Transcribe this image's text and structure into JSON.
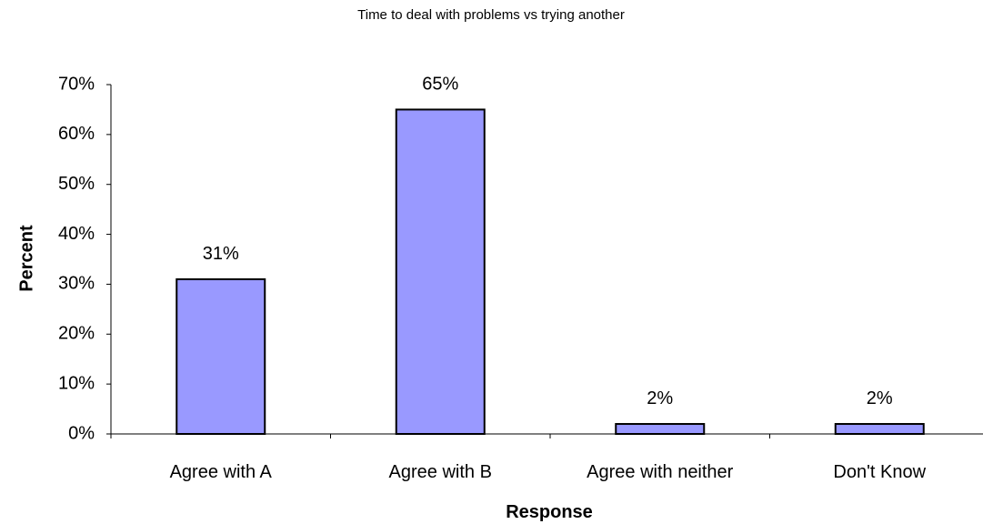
{
  "chart_data": {
    "type": "bar",
    "title": "Time to deal with problems vs trying another",
    "xlabel": "Response",
    "ylabel": "Percent",
    "categories": [
      "Agree with A",
      "Agree with B",
      "Agree with neither",
      "Don't Know"
    ],
    "values": [
      31,
      65,
      2,
      2
    ],
    "data_labels": [
      "31%",
      "65%",
      "2%",
      "2%"
    ],
    "ylim": [
      0,
      70
    ],
    "yticks": [
      0,
      10,
      20,
      30,
      40,
      50,
      60,
      70
    ],
    "ytick_labels": [
      "0%",
      "10%",
      "20%",
      "30%",
      "40%",
      "50%",
      "60%",
      "70%"
    ],
    "grid": false,
    "legend": "none",
    "bar_color": "#9999ff",
    "bar_edge_color": "#000000"
  }
}
